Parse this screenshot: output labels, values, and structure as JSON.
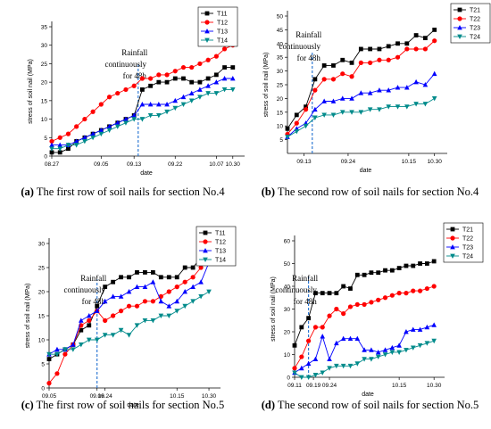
{
  "captions": [
    {
      "letter": "(a)",
      "text": " The first row of soil nails for section No.4"
    },
    {
      "letter": "(b)",
      "text": " The second row of soil nails for section No.4"
    },
    {
      "letter": "(c)",
      "text": " The first row of soil nails for section No.5"
    },
    {
      "letter": "(d)",
      "text": " The second row of soil nails for section No.5"
    }
  ],
  "chart_data": [
    {
      "type": "line",
      "xlabel": "date",
      "ylabel": "stress of soil nail (MPa)",
      "ylim": [
        0,
        35
      ],
      "yticks": [
        0,
        5,
        10,
        15,
        20,
        25,
        30,
        35
      ],
      "xlim": [
        0,
        23
      ],
      "xticks": [
        {
          "pos": 0,
          "label": "08.27"
        },
        {
          "pos": 6,
          "label": "09.05"
        },
        {
          "pos": 10,
          "label": "09.13"
        },
        {
          "pos": 15,
          "label": "09.22"
        },
        {
          "pos": 20,
          "label": "10.07"
        },
        {
          "pos": 22,
          "label": "10.30"
        }
      ],
      "annotation": {
        "text": [
          "Rainfall",
          "continuously",
          "for 48h"
        ],
        "x": 10.5
      },
      "x": [
        0,
        1,
        2,
        3,
        4,
        5,
        6,
        7,
        8,
        9,
        10,
        11,
        12,
        13,
        14,
        15,
        16,
        17,
        18,
        19,
        20,
        21,
        22
      ],
      "series": [
        {
          "name": "T11",
          "color": "#000000",
          "marker": "square",
          "values": [
            1,
            1,
            2,
            4,
            5,
            6,
            7,
            8,
            9,
            10,
            11,
            18,
            19,
            20,
            20,
            21,
            21,
            20,
            20,
            21,
            22,
            24,
            24
          ]
        },
        {
          "name": "T12",
          "color": "#ff0000",
          "marker": "circle",
          "values": [
            4,
            5,
            6,
            8,
            10,
            12,
            14,
            16,
            17,
            18,
            19,
            21,
            21,
            22,
            22,
            23,
            24,
            24,
            25,
            26,
            27,
            29,
            30
          ]
        },
        {
          "name": "T13",
          "color": "#0000ff",
          "marker": "triangle-up",
          "values": [
            3,
            3,
            3,
            4,
            5,
            6,
            7,
            8,
            9,
            10,
            11,
            14,
            14,
            14,
            14,
            15,
            16,
            17,
            18,
            19,
            20,
            21,
            21
          ]
        },
        {
          "name": "T14",
          "color": "#008b8b",
          "marker": "triangle-down",
          "values": [
            2,
            2,
            3,
            3,
            4,
            5,
            6,
            7,
            8,
            9,
            10,
            10,
            11,
            11,
            12,
            13,
            14,
            15,
            16,
            17,
            17,
            18,
            18
          ]
        }
      ]
    },
    {
      "type": "line",
      "xlabel": "date",
      "ylabel": "stress of soil nail (MPa)",
      "ylim": [
        0,
        50
      ],
      "yticks": [
        5,
        10,
        15,
        20,
        25,
        30,
        35,
        40,
        45,
        50
      ],
      "xlim": [
        0,
        17
      ],
      "xticks": [
        {
          "pos": 1.8,
          "label": "09.13"
        },
        {
          "pos": 6.6,
          "label": "09.24"
        },
        {
          "pos": 13.2,
          "label": "10.15"
        },
        {
          "pos": 16,
          "label": "10.30"
        }
      ],
      "annotation": {
        "text": [
          "Rainfall",
          "continuously",
          "for 48h"
        ],
        "x": 2.7
      },
      "x": [
        0,
        1,
        2,
        3,
        4,
        5,
        6,
        7,
        8,
        9,
        10,
        11,
        12,
        13,
        14,
        15,
        16
      ],
      "series": [
        {
          "name": "T21",
          "color": "#000000",
          "marker": "square",
          "values": [
            9,
            14,
            17,
            27,
            32,
            32,
            34,
            33,
            38,
            38,
            38,
            39,
            40,
            40,
            43,
            42,
            45
          ]
        },
        {
          "name": "T22",
          "color": "#ff0000",
          "marker": "circle",
          "values": [
            7,
            11,
            16,
            23,
            27,
            27,
            29,
            28,
            33,
            33,
            34,
            34,
            35,
            38,
            38,
            38,
            41
          ]
        },
        {
          "name": "T23",
          "color": "#0000ff",
          "marker": "triangle-up",
          "values": [
            6,
            9,
            11,
            16,
            19,
            19,
            20,
            20,
            22,
            22,
            23,
            23,
            24,
            24,
            26,
            25,
            29
          ]
        },
        {
          "name": "T24",
          "color": "#008b8b",
          "marker": "triangle-down",
          "values": [
            6,
            8,
            10,
            13,
            14,
            14,
            15,
            15,
            15,
            16,
            16,
            17,
            17,
            17,
            18,
            18,
            20
          ]
        }
      ]
    },
    {
      "type": "line",
      "xlabel": "date",
      "ylabel": "stress of soil nail (MPa)",
      "ylim": [
        0,
        30
      ],
      "yticks": [
        0,
        5,
        10,
        15,
        20,
        25,
        30
      ],
      "xlim": [
        0,
        21
      ],
      "xticks": [
        {
          "pos": 0,
          "label": "09.05"
        },
        {
          "pos": 6,
          "label": "09.16"
        },
        {
          "pos": 7,
          "label": "09.24"
        },
        {
          "pos": 16,
          "label": "10.15"
        },
        {
          "pos": 20,
          "label": "10.30"
        }
      ],
      "annotation": {
        "text": [
          "Rainfall",
          "continuously",
          "for 48h"
        ],
        "x": 6
      },
      "x": [
        0,
        1,
        2,
        3,
        4,
        5,
        6,
        7,
        8,
        9,
        10,
        11,
        12,
        13,
        14,
        15,
        16,
        17,
        18,
        19,
        20
      ],
      "series": [
        {
          "name": "T11",
          "color": "#000000",
          "marker": "square",
          "values": [
            6,
            7,
            8,
            9,
            12,
            13,
            17,
            21,
            22,
            23,
            23,
            24,
            24,
            24,
            23,
            23,
            23,
            25,
            25,
            27,
            28
          ]
        },
        {
          "name": "T12",
          "color": "#ff0000",
          "marker": "circle",
          "values": [
            1,
            3,
            7,
            9,
            13,
            14,
            16,
            14,
            15,
            16,
            17,
            17,
            18,
            18,
            19,
            20,
            21,
            22,
            23,
            25,
            27
          ]
        },
        {
          "name": "T13",
          "color": "#0000ff",
          "marker": "triangle-up",
          "values": [
            7,
            8,
            8,
            9,
            14,
            15,
            16,
            18,
            19,
            19,
            20,
            21,
            21,
            22,
            18,
            17,
            18,
            20,
            21,
            22,
            26
          ]
        },
        {
          "name": "T14",
          "color": "#008b8b",
          "marker": "triangle-down",
          "values": [
            7,
            7,
            8,
            8,
            9,
            10,
            10,
            11,
            11,
            12,
            11,
            13,
            14,
            14,
            15,
            15,
            16,
            17,
            18,
            19,
            20
          ]
        }
      ]
    },
    {
      "type": "line",
      "xlabel": "date",
      "ylabel": "stress of soil nail (MPa)",
      "ylim": [
        0,
        60
      ],
      "yticks": [
        0,
        10,
        20,
        30,
        40,
        50,
        60
      ],
      "xlim": [
        0,
        21
      ],
      "xticks": [
        {
          "pos": 0,
          "label": "09.11"
        },
        {
          "pos": 2.7,
          "label": "09.19"
        },
        {
          "pos": 5,
          "label": "09.24"
        },
        {
          "pos": 15,
          "label": "10.15"
        },
        {
          "pos": 20,
          "label": "10.30"
        }
      ],
      "annotation": {
        "text": [
          "Rainfall",
          "continuously",
          "for 48h"
        ],
        "x": 2
      },
      "x": [
        0,
        1,
        2,
        3,
        4,
        5,
        6,
        7,
        8,
        9,
        10,
        11,
        12,
        13,
        14,
        15,
        16,
        17,
        18,
        19,
        20
      ],
      "series": [
        {
          "name": "T21",
          "color": "#000000",
          "marker": "square",
          "values": [
            14,
            22,
            26,
            37,
            37,
            37,
            37,
            40,
            39,
            45,
            45,
            46,
            46,
            47,
            47,
            48,
            49,
            49,
            50,
            50,
            51
          ]
        },
        {
          "name": "T22",
          "color": "#ff0000",
          "marker": "circle",
          "values": [
            4,
            9,
            16,
            22,
            22,
            27,
            30,
            28,
            31,
            32,
            32,
            33,
            34,
            35,
            36,
            37,
            37,
            38,
            38,
            39,
            40
          ]
        },
        {
          "name": "T23",
          "color": "#0000ff",
          "marker": "triangle-up",
          "values": [
            2,
            4,
            6,
            8,
            18,
            8,
            15,
            17,
            17,
            17,
            12,
            12,
            11,
            12,
            13,
            14,
            20,
            21,
            21,
            22,
            23
          ]
        },
        {
          "name": "T24",
          "color": "#008b8b",
          "marker": "triangle-down",
          "values": [
            2,
            0,
            0,
            1,
            2,
            4,
            5,
            5,
            5,
            6,
            8,
            8,
            9,
            10,
            11,
            11,
            12,
            13,
            14,
            15,
            16
          ]
        }
      ]
    }
  ]
}
